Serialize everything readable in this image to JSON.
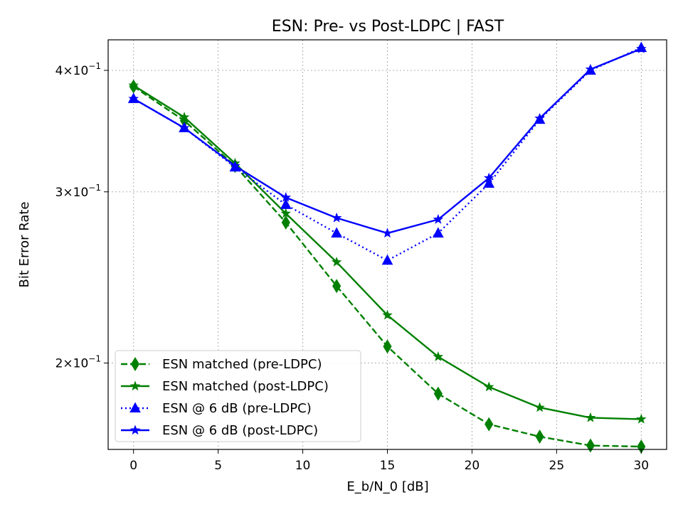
{
  "chart_data": {
    "type": "line",
    "title": "ESN: Pre- vs Post-LDPC | FAST",
    "xlabel": "E_b/N_0 [dB]",
    "ylabel": "Bit Error Rate",
    "xlim": [
      -1.5,
      31.5
    ],
    "ylim": [
      0.163,
      0.43
    ],
    "yscale": "log",
    "grid": true,
    "legend_position": "lower-left",
    "x": [
      0,
      3,
      6,
      9,
      12,
      15,
      18,
      21,
      24,
      27,
      30
    ],
    "xticks": [
      {
        "value": 0,
        "label": "0"
      },
      {
        "value": 5,
        "label": "5"
      },
      {
        "value": 10,
        "label": "10"
      },
      {
        "value": 15,
        "label": "15"
      },
      {
        "value": 20,
        "label": "20"
      },
      {
        "value": 25,
        "label": "25"
      },
      {
        "value": 30,
        "label": "30"
      }
    ],
    "yticks": [
      {
        "value": 0.4,
        "coef": "4",
        "exp": "−1"
      },
      {
        "value": 0.3,
        "coef": "3",
        "exp": "−1"
      },
      {
        "value": 0.2,
        "coef": "2",
        "exp": "−1"
      }
    ],
    "series": [
      {
        "name": "ESN matched (pre-LDPC)",
        "color": "#008000",
        "dash": "dashed",
        "marker": "diamond",
        "values": [
          0.385,
          0.355,
          0.319,
          0.279,
          0.24,
          0.208,
          0.186,
          0.173,
          0.168,
          0.1645,
          0.1641
        ]
      },
      {
        "name": "ESN matched (post-LDPC)",
        "color": "#008000",
        "dash": "solid",
        "marker": "star",
        "values": [
          0.386,
          0.358,
          0.321,
          0.285,
          0.254,
          0.224,
          0.203,
          0.189,
          0.18,
          0.1757,
          0.1751
        ]
      },
      {
        "name": "ESN @ 6 dB (pre-LDPC)",
        "color": "#0000ff",
        "dash": "dotted",
        "marker": "triangle",
        "values": [
          0.374,
          0.349,
          0.318,
          0.291,
          0.272,
          0.255,
          0.272,
          0.306,
          0.356,
          0.4,
          0.422
        ]
      },
      {
        "name": "ESN @ 6 dB (post-LDPC)",
        "color": "#0000ff",
        "dash": "solid",
        "marker": "star",
        "values": [
          0.374,
          0.349,
          0.319,
          0.296,
          0.282,
          0.272,
          0.281,
          0.31,
          0.357,
          0.401,
          0.421
        ]
      }
    ]
  }
}
